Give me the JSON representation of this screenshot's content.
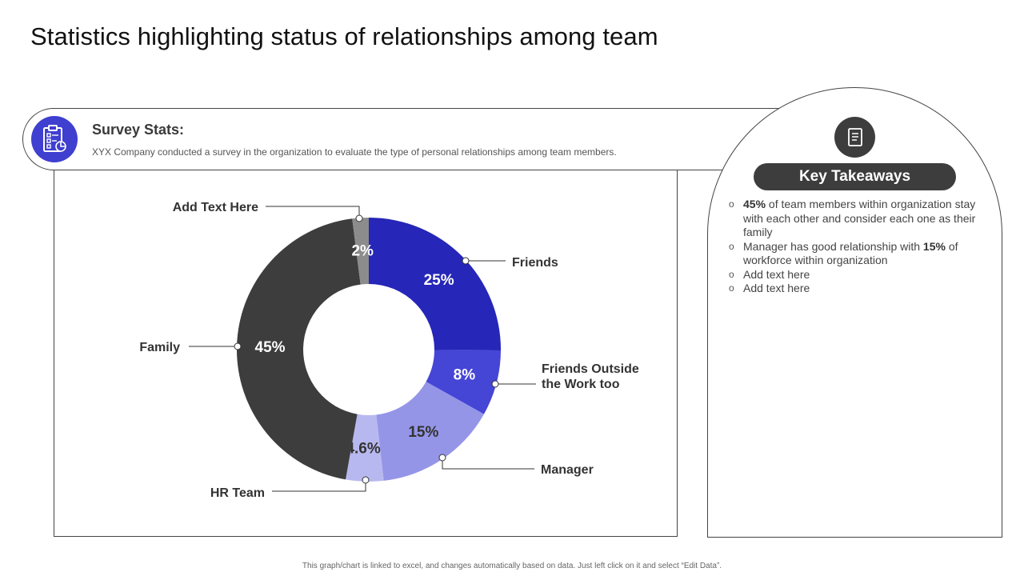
{
  "title": "Statistics highlighting status of relationships among team",
  "survey": {
    "heading": "Survey Stats:",
    "description": "XYX Company conducted a survey in the organization to evaluate the type of personal relationships among team members.",
    "icon": "clipboard-checklist-icon"
  },
  "takeaways": {
    "heading": "Key Takeaways",
    "icon": "document-icon",
    "item1": {
      "bold": "45%",
      "text": " of team members within organization stay with each other and consider each one as their family"
    },
    "item2": {
      "text": "Manager has good relationship with ",
      "bold": "15%",
      "text2": " of workforce within organization"
    },
    "item3": {
      "text": "Add text here"
    },
    "item4": {
      "text": "Add text here"
    }
  },
  "footnote": "This graph/chart is linked to excel, and changes automatically based on data. Just left click on it and select “Edit Data”.",
  "chart_data": {
    "type": "donut",
    "start": "top, clockwise",
    "slices": [
      {
        "label": "Friends",
        "value": 25,
        "display": "25%",
        "color": "#2626b8"
      },
      {
        "label": "Friends Outside the Work too",
        "value": 8,
        "display": "8%",
        "color": "#4545d6"
      },
      {
        "label": "Manager",
        "value": 15,
        "display": "15%",
        "color": "#9595e8"
      },
      {
        "label": "HR Team",
        "value": 4.6,
        "display": "4.6%",
        "color": "#b8b8f0"
      },
      {
        "label": "Family",
        "value": 45,
        "display": "45%",
        "color": "#3d3d3d"
      },
      {
        "label": "Add Text Here",
        "value": 2,
        "display": "2%",
        "color": "#8c8c8c"
      }
    ]
  }
}
